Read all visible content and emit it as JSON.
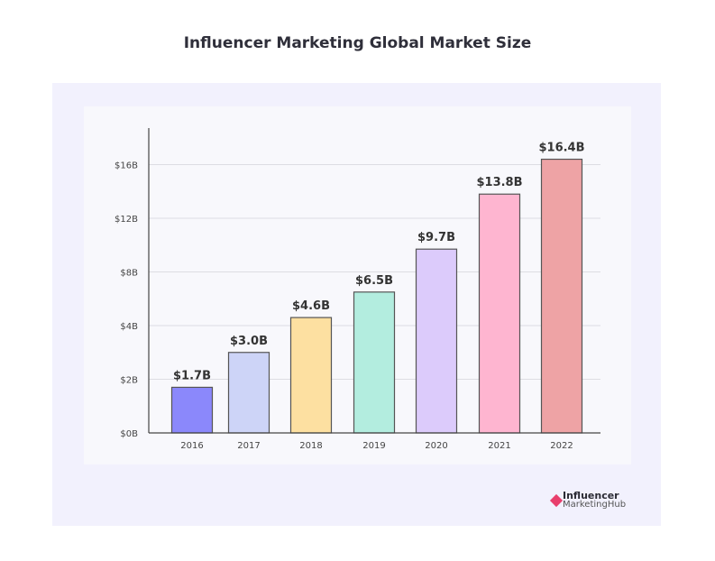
{
  "chart_data": {
    "type": "bar",
    "title": "Influencer Marketing Global Market Size",
    "categories": [
      "2016",
      "2017",
      "2018",
      "2019",
      "2020",
      "2021",
      "2022"
    ],
    "values": [
      1.7,
      3.0,
      4.6,
      6.5,
      9.7,
      13.8,
      16.4
    ],
    "data_labels": [
      "$1.7B",
      "$3.0B",
      "$4.6B",
      "$6.5B",
      "$9.7B",
      "$13.8B",
      "$16.4B"
    ],
    "colors": [
      "#8b88fb",
      "#cdd4f7",
      "#fde0a1",
      "#b3eddf",
      "#dccbfb",
      "#feb5d0",
      "#eea3a5"
    ],
    "y_ticks": [
      0,
      2,
      4,
      8,
      12,
      16
    ],
    "y_tick_labels": [
      "$0B",
      "$2B",
      "$4B",
      "$8B",
      "$12B",
      "$16B"
    ],
    "xlabel": "",
    "ylabel": "",
    "grid": true,
    "legend": "none"
  },
  "brand": {
    "line1": "Influencer",
    "line2": "MarketingHub",
    "color": "#e83e6c"
  }
}
